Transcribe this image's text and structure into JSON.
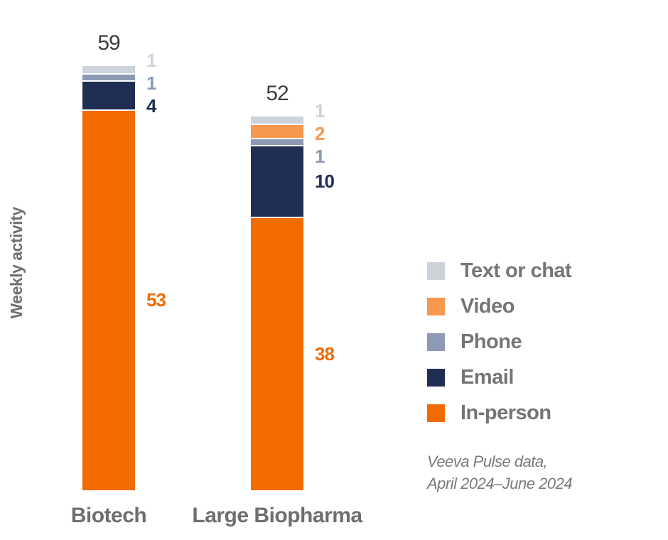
{
  "chart_data": {
    "type": "bar",
    "stacked": true,
    "title": "",
    "ylabel": "Weekly activity",
    "xlabel": "",
    "categories": [
      "Biotech",
      "Large Biopharma"
    ],
    "series": [
      {
        "name": "Text or chat",
        "color": "#CDD3DD",
        "values": [
          1,
          1
        ]
      },
      {
        "name": "Video",
        "color": "#F8984F",
        "values": [
          0,
          2
        ]
      },
      {
        "name": "Phone",
        "color": "#8C9AB5",
        "values": [
          1,
          1
        ]
      },
      {
        "name": "Email",
        "color": "#1F2E52",
        "values": [
          4,
          10
        ]
      },
      {
        "name": "In-person",
        "color": "#F26B01",
        "values": [
          53,
          38
        ]
      }
    ],
    "totals": [
      59,
      52
    ],
    "legend_position": "right",
    "legend_order": [
      "Text or chat",
      "Video",
      "Phone",
      "Email",
      "In-person"
    ],
    "grid": false,
    "source_note": [
      "Veeva Pulse data,",
      "April 2024–June 2024"
    ]
  },
  "colors": {
    "background": "#FFFFFF",
    "total_label": "#3D3D3D",
    "axis_label": "#6E6E6E",
    "legend_label": "#757575",
    "footnote": "#7A7A7A",
    "segment_separator": "#FFFFFF"
  }
}
